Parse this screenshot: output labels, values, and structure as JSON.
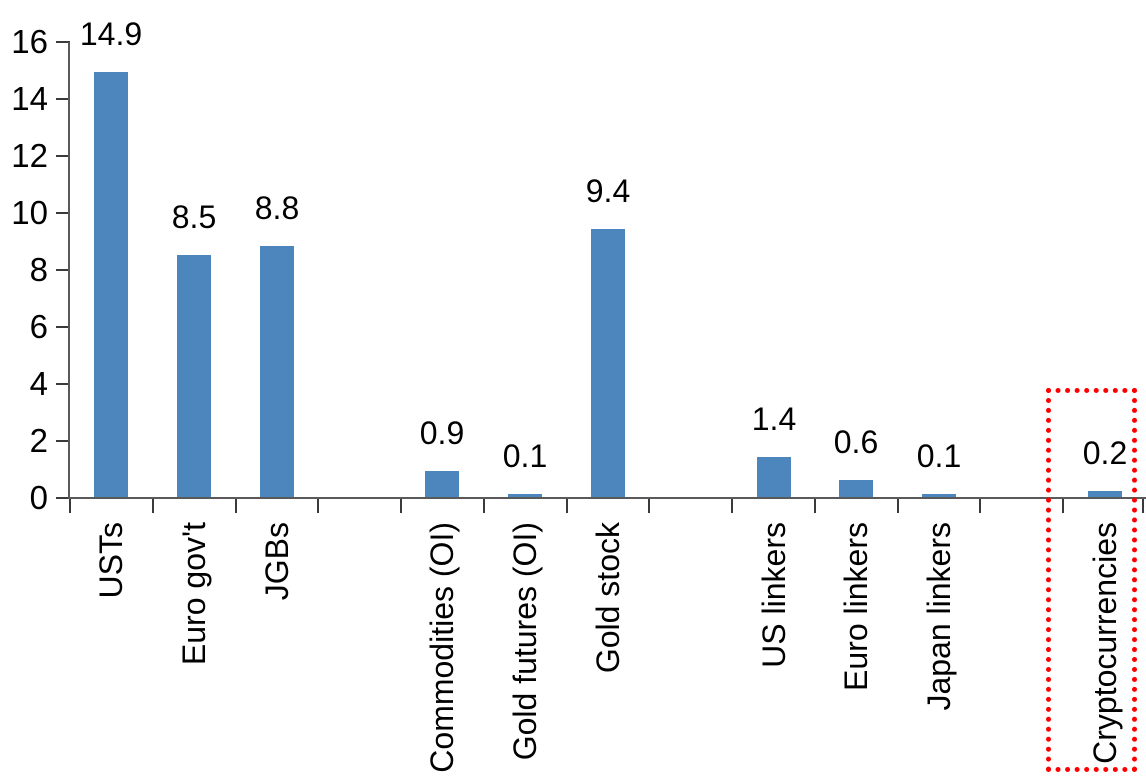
{
  "chart_data": {
    "type": "bar",
    "title": "",
    "xlabel": "",
    "ylabel": "",
    "categories": [
      "USTs",
      "Euro gov't",
      "JGBs",
      "",
      "Commodities (OI)",
      "Gold futures (OI)",
      "Gold stock",
      "",
      "US linkers",
      "Euro linkers",
      "Japan linkers",
      "",
      "Cryptocurrencies"
    ],
    "values": [
      14.9,
      8.5,
      8.8,
      null,
      0.9,
      0.1,
      9.4,
      null,
      1.4,
      0.6,
      0.1,
      null,
      0.2
    ],
    "data_labels": [
      "14.9",
      "8.5",
      "8.8",
      null,
      "0.9",
      "0.1",
      "9.4",
      null,
      "1.4",
      "0.6",
      "0.1",
      null,
      "0.2"
    ],
    "ylim": [
      0,
      16
    ],
    "yticks": [
      0,
      2,
      4,
      6,
      8,
      10,
      12,
      14,
      16
    ],
    "grid": false,
    "legend": false,
    "bar_color": "#4D86BC",
    "axis_color": "#595959",
    "tick_color": "#3A3A3A",
    "text_color": "#000000",
    "background_color": "#FFFFFF",
    "highlight": {
      "category": "Cryptocurrencies",
      "index": 12,
      "box_color": "#FF0000",
      "box_style": "dotted"
    }
  }
}
